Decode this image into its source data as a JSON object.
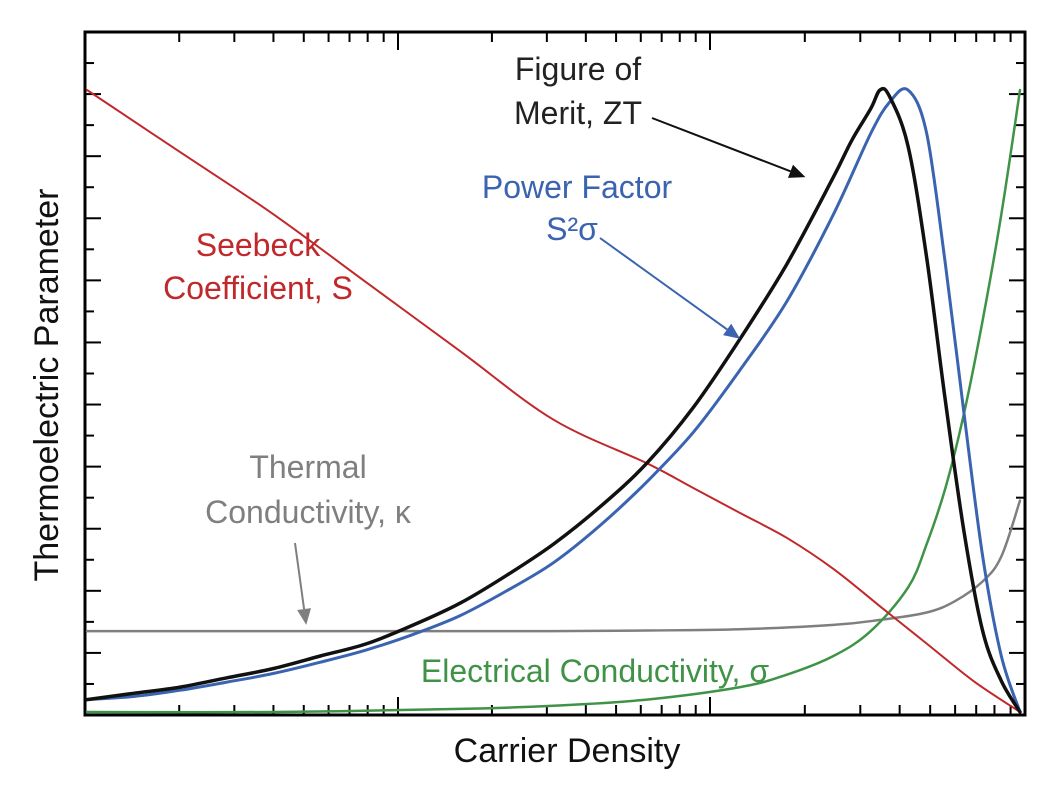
{
  "colors": {
    "seebeck": "#c0282b",
    "power_factor": "#3a63b0",
    "zt": "#111111",
    "thermal": "#7f7f7f",
    "electrical": "#3f9347",
    "axes": "#000000",
    "label_text": "#222222"
  },
  "chart_data": {
    "type": "line",
    "title": "",
    "xlabel": "Carrier Density",
    "ylabel": "Thermoelectric Parameter",
    "xscale": "log",
    "tick_labels_shown": false,
    "xlim": [
      0,
      1
    ],
    "ylim": [
      0,
      1
    ],
    "series": [
      {
        "key": "seebeck",
        "name_lines": [
          "Seebeck",
          "Coefficient, S"
        ],
        "x": [
          0.0,
          0.1,
          0.2,
          0.3,
          0.4,
          0.5,
          0.6,
          0.65,
          0.7,
          0.75,
          0.8,
          0.85,
          0.9,
          0.95,
          1.0
        ],
        "y": [
          1.0,
          0.9,
          0.8,
          0.69,
          0.58,
          0.47,
          0.4,
          0.36,
          0.32,
          0.28,
          0.23,
          0.17,
          0.11,
          0.05,
          0.0
        ]
      },
      {
        "key": "zt",
        "name_lines": [
          "Figure of",
          "Merit, ZT"
        ],
        "x": [
          0.0,
          0.05,
          0.1,
          0.15,
          0.2,
          0.25,
          0.3,
          0.35,
          0.4,
          0.45,
          0.5,
          0.55,
          0.6,
          0.65,
          0.7,
          0.75,
          0.8,
          0.82,
          0.84,
          0.85,
          0.86,
          0.88,
          0.9,
          0.92,
          0.94,
          0.96,
          0.98,
          1.0
        ],
        "y": [
          0.02,
          0.03,
          0.04,
          0.055,
          0.07,
          0.09,
          0.11,
          0.14,
          0.175,
          0.22,
          0.27,
          0.33,
          0.4,
          0.49,
          0.6,
          0.72,
          0.86,
          0.92,
          0.97,
          1.0,
          0.99,
          0.91,
          0.73,
          0.5,
          0.29,
          0.13,
          0.05,
          0.0
        ]
      },
      {
        "key": "power_factor",
        "name_lines": [
          "Power Factor",
          "S²σ"
        ],
        "x": [
          0.0,
          0.05,
          0.1,
          0.15,
          0.2,
          0.25,
          0.3,
          0.35,
          0.4,
          0.45,
          0.5,
          0.55,
          0.6,
          0.65,
          0.7,
          0.75,
          0.8,
          0.84,
          0.86,
          0.88,
          0.9,
          0.92,
          0.94,
          0.96,
          0.98,
          1.0
        ],
        "y": [
          0.02,
          0.025,
          0.035,
          0.048,
          0.062,
          0.08,
          0.1,
          0.125,
          0.155,
          0.195,
          0.24,
          0.3,
          0.37,
          0.45,
          0.55,
          0.66,
          0.8,
          0.93,
          0.98,
          1.0,
          0.93,
          0.72,
          0.48,
          0.25,
          0.09,
          0.0
        ]
      },
      {
        "key": "thermal",
        "name_lines": [
          "Thermal",
          "Conductivity, κ"
        ],
        "x": [
          0.0,
          0.1,
          0.2,
          0.3,
          0.4,
          0.5,
          0.6,
          0.7,
          0.8,
          0.85,
          0.9,
          0.93,
          0.96,
          0.98,
          1.0
        ],
        "y": [
          0.13,
          0.13,
          0.13,
          0.13,
          0.13,
          0.13,
          0.131,
          0.133,
          0.14,
          0.148,
          0.16,
          0.178,
          0.21,
          0.25,
          0.34
        ]
      },
      {
        "key": "electrical",
        "name_lines": [
          "Electrical Conductivity, σ"
        ],
        "x": [
          0.0,
          0.2,
          0.4,
          0.5,
          0.6,
          0.7,
          0.75,
          0.8,
          0.84,
          0.88,
          0.9,
          0.92,
          0.94,
          0.96,
          0.98,
          1.0
        ],
        "y": [
          0.0,
          0.0,
          0.005,
          0.01,
          0.02,
          0.04,
          0.06,
          0.09,
          0.13,
          0.2,
          0.27,
          0.36,
          0.48,
          0.63,
          0.8,
          1.0
        ]
      }
    ],
    "annotations": [
      {
        "series": "zt",
        "arrow_to": [
          0.77,
          0.86
        ]
      },
      {
        "series": "power_factor",
        "arrow_to": [
          0.7,
          0.6
        ]
      },
      {
        "series": "thermal",
        "arrow_to": [
          0.235,
          0.14
        ]
      }
    ]
  }
}
